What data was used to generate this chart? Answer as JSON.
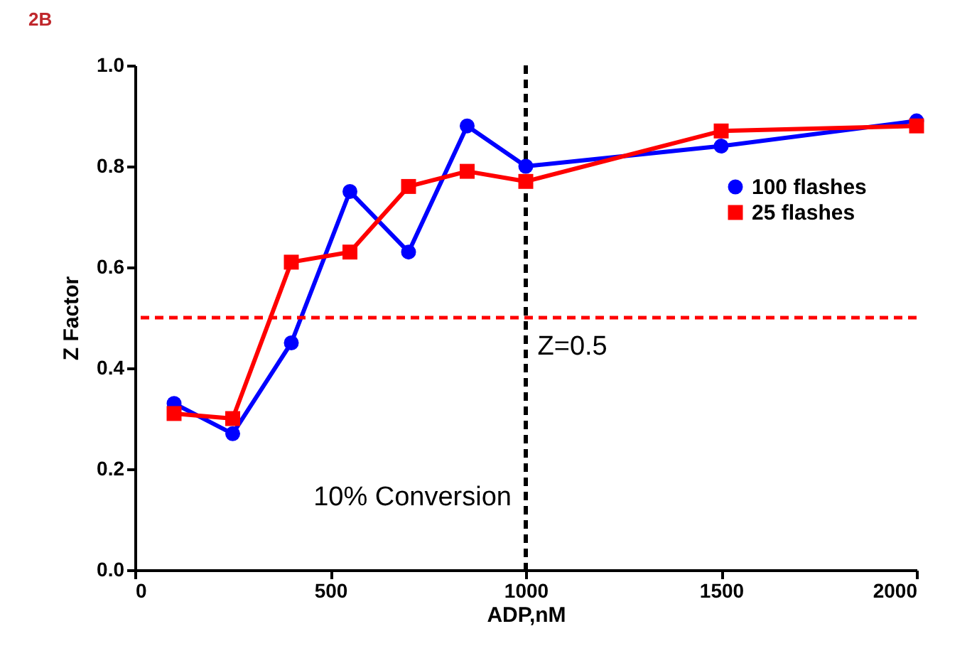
{
  "chart_data": {
    "type": "line",
    "title": "2B",
    "xlabel": "ADP,nM",
    "ylabel": "Z Factor",
    "x": [
      100,
      250,
      400,
      550,
      700,
      850,
      1000,
      1500,
      2000
    ],
    "series": [
      {
        "name": "100 flashes",
        "color": "#0000ff",
        "marker": "circle",
        "values": [
          0.33,
          0.27,
          0.45,
          0.75,
          0.63,
          0.88,
          0.8,
          0.84,
          0.89
        ]
      },
      {
        "name": "25 flashes",
        "color": "#ff0000",
        "marker": "square",
        "values": [
          0.31,
          0.3,
          0.61,
          0.63,
          0.76,
          0.79,
          0.77,
          0.87,
          0.88
        ]
      }
    ],
    "xlim": [
      0,
      2000
    ],
    "xticks": [
      0,
      500,
      1000,
      1500,
      2000
    ],
    "ylim": [
      0,
      1
    ],
    "yticks": [
      {
        "value": 0,
        "label": "0.0"
      },
      0.2,
      0.4,
      0.6,
      0.8,
      {
        "value": 1,
        "label": "1.0"
      }
    ],
    "ref_lines": [
      {
        "axis": "x",
        "value": 1000,
        "label": "10% Conversion",
        "color": "#000000",
        "line_style": "dashed"
      },
      {
        "axis": "y",
        "value": 0.5,
        "label": "Z=0.5",
        "color": "#ff0000",
        "line_style": "dashed"
      }
    ],
    "grid": false,
    "legend": "top right",
    "line_style": "solid"
  }
}
